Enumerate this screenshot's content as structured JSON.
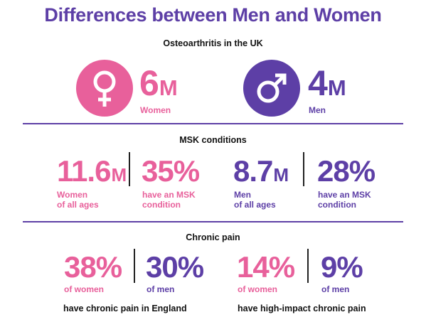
{
  "title": "Differences between Men and Women",
  "colors": {
    "women": "#e8609b",
    "men": "#5d3fa6"
  },
  "osteo": {
    "heading": "Osteoarthritis in the UK",
    "women": {
      "icon": "female-symbol-icon",
      "value": "6",
      "unit": "M",
      "label": "Women"
    },
    "men": {
      "icon": "male-symbol-icon",
      "value": "4",
      "unit": "M",
      "label": "Men"
    }
  },
  "msk": {
    "heading": "MSK conditions",
    "women_count": {
      "value": "11.6",
      "unit": "M",
      "line1": "Women",
      "line2": "of all ages"
    },
    "women_pct": {
      "value": "35%",
      "line1": "have an MSK",
      "line2": "condition"
    },
    "men_count": {
      "value": "8.7",
      "unit": "M",
      "line1": "Men",
      "line2": "of all ages"
    },
    "men_pct": {
      "value": "28%",
      "line1": "have an MSK",
      "line2": "condition"
    }
  },
  "pain": {
    "heading": "Chronic pain",
    "england_women": {
      "value": "38%",
      "label": "of women"
    },
    "england_men": {
      "value": "30%",
      "label": "of men"
    },
    "england_caption": "have chronic pain in England",
    "high_women": {
      "value": "14%",
      "label": "of women"
    },
    "high_men": {
      "value": "9%",
      "label": "of men"
    },
    "high_caption": "have high-impact chronic pain"
  }
}
